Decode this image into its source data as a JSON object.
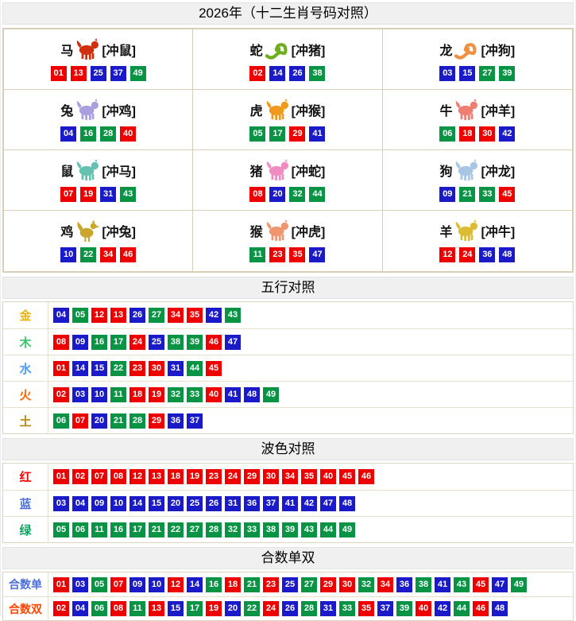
{
  "page_title": "2026年（十二生肖号码对照）",
  "theme": {
    "header_bg": "#f0f0f0",
    "table_border": "#d9cfb6",
    "tile_text": "#ffffff"
  },
  "tile_colors": {
    "red": "#ef0000",
    "blue": "#1a1ac9",
    "green": "#089444"
  },
  "wave_groups": {
    "red": [
      "01",
      "02",
      "07",
      "08",
      "12",
      "13",
      "18",
      "19",
      "23",
      "24",
      "29",
      "30",
      "34",
      "35",
      "40",
      "45",
      "46"
    ],
    "blue": [
      "03",
      "04",
      "09",
      "10",
      "14",
      "15",
      "20",
      "25",
      "26",
      "31",
      "36",
      "37",
      "41",
      "42",
      "47",
      "48"
    ],
    "green": [
      "05",
      "06",
      "11",
      "16",
      "17",
      "21",
      "22",
      "27",
      "28",
      "32",
      "33",
      "38",
      "39",
      "43",
      "44",
      "49"
    ]
  },
  "zodiac_grid": {
    "cells": [
      {
        "name": "马",
        "clash": "[冲鼠]",
        "icon": "horse-icon",
        "icon_shape": "beast",
        "icon_color": "#d03010",
        "numbers": [
          "01",
          "13",
          "25",
          "37",
          "49"
        ]
      },
      {
        "name": "蛇",
        "clash": "[冲猪]",
        "icon": "snake-icon",
        "icon_shape": "snake",
        "icon_color": "#6fae1f",
        "numbers": [
          "02",
          "14",
          "26",
          "38"
        ]
      },
      {
        "name": "龙",
        "clash": "[冲狗]",
        "icon": "dragon-icon",
        "icon_shape": "snake",
        "icon_color": "#ef9143",
        "numbers": [
          "03",
          "15",
          "27",
          "39"
        ]
      },
      {
        "name": "兔",
        "clash": "[冲鸡]",
        "icon": "rabbit-icon",
        "icon_shape": "beast",
        "icon_color": "#ab9fe0",
        "numbers": [
          "04",
          "16",
          "28",
          "40"
        ]
      },
      {
        "name": "虎",
        "clash": "[冲猴]",
        "icon": "tiger-icon",
        "icon_shape": "beast",
        "icon_color": "#ef9a1c",
        "numbers": [
          "05",
          "17",
          "29",
          "41"
        ]
      },
      {
        "name": "牛",
        "clash": "[冲羊]",
        "icon": "ox-icon",
        "icon_shape": "beast",
        "icon_color": "#ee7d72",
        "numbers": [
          "06",
          "18",
          "30",
          "42"
        ]
      },
      {
        "name": "鼠",
        "clash": "[冲马]",
        "icon": "rat-icon",
        "icon_shape": "beast",
        "icon_color": "#66c2b0",
        "numbers": [
          "07",
          "19",
          "31",
          "43"
        ]
      },
      {
        "name": "猪",
        "clash": "[冲蛇]",
        "icon": "pig-icon",
        "icon_shape": "beast",
        "icon_color": "#f08cc2",
        "numbers": [
          "08",
          "20",
          "32",
          "44"
        ]
      },
      {
        "name": "狗",
        "clash": "[冲龙]",
        "icon": "dog-icon",
        "icon_shape": "beast",
        "icon_color": "#a6c6e4",
        "numbers": [
          "09",
          "21",
          "33",
          "45"
        ]
      },
      {
        "name": "鸡",
        "clash": "[冲兔]",
        "icon": "rooster-icon",
        "icon_shape": "bird",
        "icon_color": "#c9a62c",
        "numbers": [
          "10",
          "22",
          "34",
          "46"
        ]
      },
      {
        "name": "猴",
        "clash": "[冲虎]",
        "icon": "monkey-icon",
        "icon_shape": "beast",
        "icon_color": "#ef9670",
        "numbers": [
          "11",
          "23",
          "35",
          "47"
        ]
      },
      {
        "name": "羊",
        "clash": "[冲牛]",
        "icon": "goat-icon",
        "icon_shape": "beast",
        "icon_color": "#dcbc34",
        "numbers": [
          "12",
          "24",
          "36",
          "48"
        ]
      }
    ]
  },
  "sections": [
    {
      "id": "wuxing",
      "header": "五行对照",
      "rows": [
        {
          "label": "金",
          "label_color": "#e9b410",
          "numbers": [
            "04",
            "05",
            "12",
            "13",
            "26",
            "27",
            "34",
            "35",
            "42",
            "43"
          ]
        },
        {
          "label": "木",
          "label_color": "#3ec46c",
          "numbers": [
            "08",
            "09",
            "16",
            "17",
            "24",
            "25",
            "38",
            "39",
            "46",
            "47"
          ]
        },
        {
          "label": "水",
          "label_color": "#4a9cf6",
          "numbers": [
            "01",
            "14",
            "15",
            "22",
            "23",
            "30",
            "31",
            "44",
            "45"
          ]
        },
        {
          "label": "火",
          "label_color": "#ff6600",
          "numbers": [
            "02",
            "03",
            "10",
            "11",
            "18",
            "19",
            "32",
            "33",
            "40",
            "41",
            "48",
            "49"
          ]
        },
        {
          "label": "土",
          "label_color": "#b8860b",
          "numbers": [
            "06",
            "07",
            "20",
            "21",
            "28",
            "29",
            "36",
            "37"
          ]
        }
      ]
    },
    {
      "id": "bose",
      "header": "波色对照",
      "rows": [
        {
          "label": "红",
          "label_color": "#ff0000",
          "numbers": [
            "01",
            "02",
            "07",
            "08",
            "12",
            "13",
            "18",
            "19",
            "23",
            "24",
            "29",
            "30",
            "34",
            "35",
            "40",
            "45",
            "46"
          ]
        },
        {
          "label": "蓝",
          "label_color": "#4a6fdd",
          "numbers": [
            "03",
            "04",
            "09",
            "10",
            "14",
            "15",
            "20",
            "25",
            "26",
            "31",
            "36",
            "37",
            "41",
            "42",
            "47",
            "48"
          ]
        },
        {
          "label": "绿",
          "label_color": "#0aa45e",
          "numbers": [
            "05",
            "06",
            "11",
            "16",
            "17",
            "21",
            "22",
            "27",
            "28",
            "32",
            "33",
            "38",
            "39",
            "43",
            "44",
            "49"
          ]
        }
      ]
    },
    {
      "id": "heshu",
      "header": "合数单双",
      "rows": [
        {
          "label": "合数单",
          "label_color": "#4a6fdd",
          "numbers": [
            "01",
            "03",
            "05",
            "07",
            "09",
            "10",
            "12",
            "14",
            "16",
            "18",
            "21",
            "23",
            "25",
            "27",
            "29",
            "30",
            "32",
            "34",
            "36",
            "38",
            "41",
            "43",
            "45",
            "47",
            "49"
          ]
        },
        {
          "label": "合数双",
          "label_color": "#ff4400",
          "numbers": [
            "02",
            "04",
            "06",
            "08",
            "11",
            "13",
            "15",
            "17",
            "19",
            "20",
            "22",
            "24",
            "26",
            "28",
            "31",
            "33",
            "35",
            "37",
            "39",
            "40",
            "42",
            "44",
            "46",
            "48"
          ]
        }
      ]
    }
  ]
}
